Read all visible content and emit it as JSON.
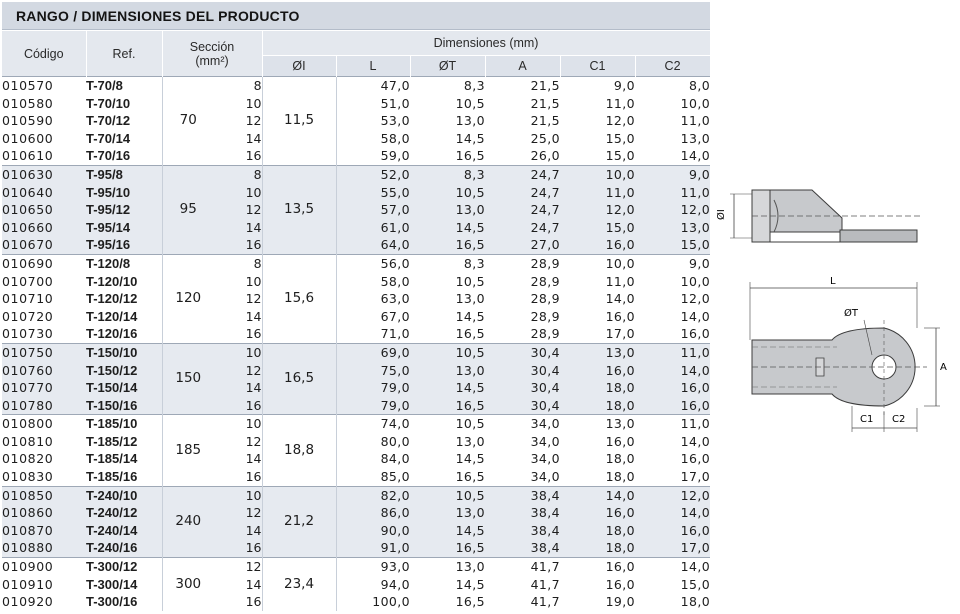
{
  "title": "RANGO / DIMENSIONES DEL PRODUCTO",
  "headers": {
    "codigo": "Código",
    "ref": "Ref.",
    "seccion": "Sección",
    "seccion_unit": "(mm²)",
    "dimensiones": "Dimensiones (mm)",
    "cols": [
      "ØI",
      "L",
      "ØT",
      "A",
      "C1",
      "C2"
    ]
  },
  "groups": [
    {
      "section": "70",
      "di": "11,5",
      "rows": [
        {
          "code": "010570",
          "ref": "T-70/8",
          "t": "8",
          "L": "47,0",
          "T": "8,3",
          "A": "21,5",
          "C1": "9,0",
          "C2": "8,0"
        },
        {
          "code": "010580",
          "ref": "T-70/10",
          "t": "10",
          "L": "51,0",
          "T": "10,5",
          "A": "21,5",
          "C1": "11,0",
          "C2": "10,0"
        },
        {
          "code": "010590",
          "ref": "T-70/12",
          "t": "12",
          "L": "53,0",
          "T": "13,0",
          "A": "21,5",
          "C1": "12,0",
          "C2": "11,0"
        },
        {
          "code": "010600",
          "ref": "T-70/14",
          "t": "14",
          "L": "58,0",
          "T": "14,5",
          "A": "25,0",
          "C1": "15,0",
          "C2": "13,0"
        },
        {
          "code": "010610",
          "ref": "T-70/16",
          "t": "16",
          "L": "59,0",
          "T": "16,5",
          "A": "26,0",
          "C1": "15,0",
          "C2": "14,0"
        }
      ]
    },
    {
      "section": "95",
      "di": "13,5",
      "rows": [
        {
          "code": "010630",
          "ref": "T-95/8",
          "t": "8",
          "L": "52,0",
          "T": "8,3",
          "A": "24,7",
          "C1": "10,0",
          "C2": "9,0"
        },
        {
          "code": "010640",
          "ref": "T-95/10",
          "t": "10",
          "L": "55,0",
          "T": "10,5",
          "A": "24,7",
          "C1": "11,0",
          "C2": "11,0"
        },
        {
          "code": "010650",
          "ref": "T-95/12",
          "t": "12",
          "L": "57,0",
          "T": "13,0",
          "A": "24,7",
          "C1": "12,0",
          "C2": "12,0"
        },
        {
          "code": "010660",
          "ref": "T-95/14",
          "t": "14",
          "L": "61,0",
          "T": "14,5",
          "A": "24,7",
          "C1": "15,0",
          "C2": "13,0"
        },
        {
          "code": "010670",
          "ref": "T-95/16",
          "t": "16",
          "L": "64,0",
          "T": "16,5",
          "A": "27,0",
          "C1": "16,0",
          "C2": "15,0"
        }
      ]
    },
    {
      "section": "120",
      "di": "15,6",
      "rows": [
        {
          "code": "010690",
          "ref": "T-120/8",
          "t": "8",
          "L": "56,0",
          "T": "8,3",
          "A": "28,9",
          "C1": "10,0",
          "C2": "9,0"
        },
        {
          "code": "010700",
          "ref": "T-120/10",
          "t": "10",
          "L": "58,0",
          "T": "10,5",
          "A": "28,9",
          "C1": "11,0",
          "C2": "10,0"
        },
        {
          "code": "010710",
          "ref": "T-120/12",
          "t": "12",
          "L": "63,0",
          "T": "13,0",
          "A": "28,9",
          "C1": "14,0",
          "C2": "12,0"
        },
        {
          "code": "010720",
          "ref": "T-120/14",
          "t": "14",
          "L": "67,0",
          "T": "14,5",
          "A": "28,9",
          "C1": "16,0",
          "C2": "14,0"
        },
        {
          "code": "010730",
          "ref": "T-120/16",
          "t": "16",
          "L": "71,0",
          "T": "16,5",
          "A": "28,9",
          "C1": "17,0",
          "C2": "16,0"
        }
      ]
    },
    {
      "section": "150",
      "di": "16,5",
      "rows": [
        {
          "code": "010750",
          "ref": "T-150/10",
          "t": "10",
          "L": "69,0",
          "T": "10,5",
          "A": "30,4",
          "C1": "13,0",
          "C2": "11,0"
        },
        {
          "code": "010760",
          "ref": "T-150/12",
          "t": "12",
          "L": "75,0",
          "T": "13,0",
          "A": "30,4",
          "C1": "16,0",
          "C2": "14,0"
        },
        {
          "code": "010770",
          "ref": "T-150/14",
          "t": "14",
          "L": "79,0",
          "T": "14,5",
          "A": "30,4",
          "C1": "18,0",
          "C2": "16,0"
        },
        {
          "code": "010780",
          "ref": "T-150/16",
          "t": "16",
          "L": "79,0",
          "T": "16,5",
          "A": "30,4",
          "C1": "18,0",
          "C2": "16,0"
        }
      ]
    },
    {
      "section": "185",
      "di": "18,8",
      "rows": [
        {
          "code": "010800",
          "ref": "T-185/10",
          "t": "10",
          "L": "74,0",
          "T": "10,5",
          "A": "34,0",
          "C1": "13,0",
          "C2": "11,0"
        },
        {
          "code": "010810",
          "ref": "T-185/12",
          "t": "12",
          "L": "80,0",
          "T": "13,0",
          "A": "34,0",
          "C1": "16,0",
          "C2": "14,0"
        },
        {
          "code": "010820",
          "ref": "T-185/14",
          "t": "14",
          "L": "84,0",
          "T": "14,5",
          "A": "34,0",
          "C1": "18,0",
          "C2": "16,0"
        },
        {
          "code": "010830",
          "ref": "T-185/16",
          "t": "16",
          "L": "85,0",
          "T": "16,5",
          "A": "34,0",
          "C1": "18,0",
          "C2": "17,0"
        }
      ]
    },
    {
      "section": "240",
      "di": "21,2",
      "rows": [
        {
          "code": "010850",
          "ref": "T-240/10",
          "t": "10",
          "L": "82,0",
          "T": "10,5",
          "A": "38,4",
          "C1": "14,0",
          "C2": "12,0"
        },
        {
          "code": "010860",
          "ref": "T-240/12",
          "t": "12",
          "L": "86,0",
          "T": "13,0",
          "A": "38,4",
          "C1": "16,0",
          "C2": "14,0"
        },
        {
          "code": "010870",
          "ref": "T-240/14",
          "t": "14",
          "L": "90,0",
          "T": "14,5",
          "A": "38,4",
          "C1": "18,0",
          "C2": "16,0"
        },
        {
          "code": "010880",
          "ref": "T-240/16",
          "t": "16",
          "L": "91,0",
          "T": "16,5",
          "A": "38,4",
          "C1": "18,0",
          "C2": "17,0"
        }
      ]
    },
    {
      "section": "300",
      "di": "23,4",
      "rows": [
        {
          "code": "010900",
          "ref": "T-300/12",
          "t": "12",
          "L": "93,0",
          "T": "13,0",
          "A": "41,7",
          "C1": "16,0",
          "C2": "14,0"
        },
        {
          "code": "010910",
          "ref": "T-300/14",
          "t": "14",
          "L": "94,0",
          "T": "14,5",
          "A": "41,7",
          "C1": "16,0",
          "C2": "15,0"
        },
        {
          "code": "010920",
          "ref": "T-300/16",
          "t": "16",
          "L": "100,0",
          "T": "16,5",
          "A": "41,7",
          "C1": "19,0",
          "C2": "18,0"
        }
      ]
    }
  ],
  "drawing_labels": {
    "di": "ØI",
    "l": "L",
    "dt": "ØT",
    "a": "A",
    "c1": "C1",
    "c2": "C2"
  }
}
